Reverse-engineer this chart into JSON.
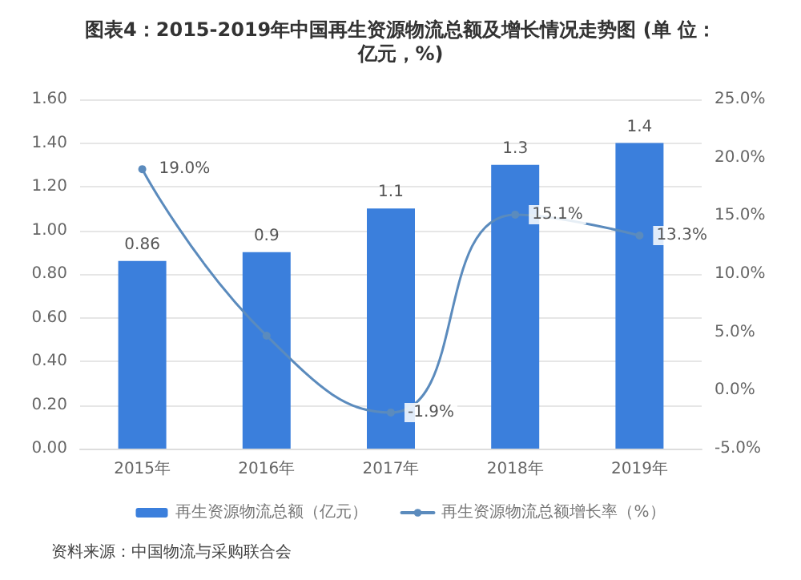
{
  "chart_data": {
    "type": "bar",
    "title": "图表4：2015-2019年中国再生资源物流总额及增长情况走势图 (单 位：亿元，%)",
    "categories": [
      "2015年",
      "2016年",
      "2017年",
      "2018年",
      "2019年"
    ],
    "series": [
      {
        "name": "再生资源物流总额（亿元）",
        "color": "#3b7fdc",
        "values": [
          0.86,
          0.9,
          1.1,
          1.3,
          1.4
        ],
        "data_labels": true
      },
      {
        "name": "再生资源物流总额增长率（%）",
        "type": "line",
        "axis": "y2",
        "color": "#5b8bbd",
        "values": [
          19.0,
          4.7,
          -1.9,
          15.1,
          13.3
        ],
        "value_labels": [
          "19.0%",
          null,
          "-1.9%",
          "15.1%",
          "13.3%"
        ],
        "marker": "circle"
      }
    ],
    "ylim": [
      0,
      1.6
    ],
    "yticks": [
      {
        "value": 0,
        "label": "0.00"
      },
      {
        "value": 0.2,
        "label": "0.20"
      },
      {
        "value": 0.4,
        "label": "0.40"
      },
      {
        "value": 0.6,
        "label": "0.60"
      },
      {
        "value": 0.8,
        "label": "0.80"
      },
      {
        "value": 1.0,
        "label": "1.00"
      },
      {
        "value": 1.2,
        "label": "1.20"
      },
      {
        "value": 1.4,
        "label": "1.40"
      },
      {
        "value": 1.6,
        "label": "1.60"
      }
    ],
    "y2lim": [
      -5,
      25
    ],
    "y2ticks": [
      {
        "value": -5,
        "label": "-5.0%"
      },
      {
        "value": 0,
        "label": "0.0%"
      },
      {
        "value": 5,
        "label": "5.0%"
      },
      {
        "value": 10,
        "label": "10.0%"
      },
      {
        "value": 15,
        "label": "15.0%"
      },
      {
        "value": 20,
        "label": "20.0%"
      },
      {
        "value": 25,
        "label": "25.0%"
      }
    ],
    "grid": "y",
    "legend": "bottom",
    "annotations": [
      "资料来源：中国物流与采购联合会"
    ]
  }
}
